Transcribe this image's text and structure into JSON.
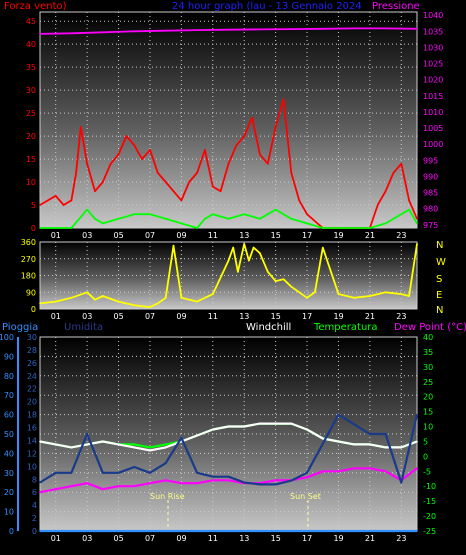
{
  "header": {
    "left_title": "Forza vento)",
    "center_title": "24 hour graph (lau - 13 Gennaio 2024",
    "right_title": "Pressione",
    "colors": {
      "left": "#ff0000",
      "center": "#2020ff",
      "right": "#ff00ff"
    }
  },
  "middle_panel": {
    "compass": [
      "N",
      "W",
      "S",
      "E",
      "N"
    ],
    "compass_color": "#ffff00"
  },
  "bottom_header": {
    "pioggia": "Pioggia",
    "umidita": "Umidita",
    "windchill": "Windchill",
    "temperatura": "Temperatura",
    "dewpoint": "Dew Point (°C)",
    "colors": {
      "pioggia": "#3090ff",
      "umidita": "#2a3a8a",
      "windchill": "#ffffff",
      "temperatura": "#00ff00",
      "dewpoint": "#ff00ff"
    }
  },
  "annotations": {
    "sunrise": "Sun Rise",
    "sunset": "Sun Set"
  },
  "chart_data": [
    {
      "type": "line",
      "panel": "top",
      "x_ticks": [
        "01",
        "03",
        "05",
        "07",
        "09",
        "11",
        "13",
        "15",
        "17",
        "19",
        "21",
        "23"
      ],
      "y_left": {
        "ticks": [
          0,
          5,
          10,
          15,
          20,
          25,
          30,
          35,
          40,
          45
        ],
        "range": [
          0,
          47
        ]
      },
      "y_right": {
        "ticks": [
          975,
          980,
          985,
          990,
          995,
          1000,
          1005,
          1010,
          1015,
          1020,
          1025,
          1030,
          1035,
          1040
        ],
        "range": [
          974,
          1041
        ]
      },
      "series": [
        {
          "name": "Pressione",
          "axis": "right",
          "color": "#ff00ff",
          "x": [
            0,
            2,
            4,
            6,
            8,
            10,
            12,
            14,
            16,
            18,
            20,
            22,
            24
          ],
          "y": [
            1034.2,
            1034.4,
            1034.7,
            1035.0,
            1035.2,
            1035.4,
            1035.5,
            1035.6,
            1035.7,
            1035.8,
            1035.9,
            1035.9,
            1035.8
          ]
        },
        {
          "color": "#ff0000",
          "axis": "left",
          "x": [
            0,
            0.5,
            1,
            1.5,
            2,
            2.3,
            2.6,
            3,
            3.5,
            4,
            4.5,
            5,
            5.5,
            6,
            6.5,
            7,
            7.5,
            8,
            8.5,
            9,
            9.5,
            10,
            10.5,
            11,
            11.5,
            12,
            12.5,
            13,
            13.5,
            14,
            14.5,
            15,
            15.5,
            16,
            16.5,
            17,
            18,
            19,
            20,
            21,
            21.5,
            22,
            22.5,
            23,
            23.5,
            24
          ],
          "y": [
            5,
            6,
            7,
            5,
            6,
            12,
            22,
            14,
            8,
            10,
            14,
            16,
            20,
            18,
            15,
            17,
            12,
            10,
            8,
            6,
            10,
            12,
            17,
            9,
            8,
            14,
            18,
            20,
            24,
            16,
            14,
            22,
            28,
            12,
            6,
            3,
            0,
            0,
            0,
            0,
            5,
            8,
            12,
            14,
            6,
            2
          ]
        },
        {
          "color": "#00ff00",
          "axis": "left",
          "x": [
            0,
            1,
            2,
            2.5,
            3,
            3.5,
            4,
            5,
            6,
            7,
            8,
            9,
            10,
            10.5,
            11,
            12,
            13,
            14,
            15,
            16,
            17,
            18,
            19,
            20,
            21,
            22,
            23,
            23.5,
            24
          ],
          "y": [
            0,
            0,
            0,
            2,
            4,
            2,
            1,
            2,
            3,
            3,
            2,
            1,
            0,
            2,
            3,
            2,
            3,
            2,
            4,
            2,
            1,
            0,
            0,
            0,
            0,
            1,
            3,
            4,
            1
          ]
        }
      ]
    },
    {
      "type": "line",
      "panel": "middle",
      "x_ticks": [
        "01",
        "03",
        "05",
        "07",
        "09",
        "11",
        "13",
        "15",
        "17",
        "19",
        "21",
        "23"
      ],
      "y": {
        "ticks": [
          0,
          90,
          180,
          270,
          360
        ],
        "range": [
          0,
          360
        ]
      },
      "series": [
        {
          "color": "#ffff00",
          "x": [
            0,
            1,
            2,
            3,
            3.5,
            4,
            5,
            6,
            7,
            7.5,
            8,
            8.5,
            9,
            10,
            11,
            12,
            12.3,
            12.6,
            13,
            13.3,
            13.6,
            14,
            14.5,
            15,
            15.5,
            16,
            17,
            17.5,
            18,
            19,
            20,
            21,
            22,
            23,
            23.5,
            24
          ],
          "y": [
            30,
            40,
            60,
            90,
            50,
            70,
            40,
            20,
            10,
            30,
            60,
            340,
            60,
            40,
            80,
            260,
            330,
            200,
            350,
            260,
            330,
            300,
            200,
            150,
            160,
            120,
            60,
            90,
            330,
            80,
            60,
            70,
            90,
            80,
            70,
            350
          ]
        }
      ]
    },
    {
      "type": "line",
      "panel": "bottom",
      "x_ticks": [
        "01",
        "03",
        "05",
        "07",
        "09",
        "11",
        "13",
        "15",
        "17",
        "19",
        "21",
        "23"
      ],
      "y_outer_left": {
        "ticks": [
          0,
          10,
          20,
          30,
          40,
          50,
          60,
          70,
          80,
          90,
          100
        ],
        "range": [
          0,
          100
        ]
      },
      "y_inner_left": {
        "ticks": [
          0,
          2,
          4,
          6,
          8,
          10,
          12,
          14,
          16,
          18,
          20,
          22,
          24,
          26,
          28,
          30
        ],
        "range": [
          0,
          30
        ]
      },
      "y_right": {
        "ticks": [
          40,
          35,
          30,
          25,
          20,
          15,
          10,
          5,
          0,
          -5,
          -10,
          -15,
          -20,
          -25
        ],
        "range": [
          -25,
          40
        ]
      },
      "series": [
        {
          "name": "Temperatura",
          "color": "#00ff00",
          "axis": "right",
          "x": [
            0,
            1,
            2,
            3,
            4,
            5,
            6,
            7,
            8,
            9,
            10,
            11,
            12,
            13,
            14,
            15,
            16,
            17,
            18,
            19,
            20,
            21,
            22,
            23,
            24
          ],
          "y": [
            5,
            4,
            3,
            4,
            5,
            4,
            4,
            3,
            4,
            5,
            7,
            9,
            10,
            10,
            11,
            11,
            11,
            9,
            6,
            5,
            4,
            4,
            3,
            3,
            5
          ]
        },
        {
          "name": "Windchill",
          "color": "#ffffff",
          "axis": "right",
          "x": [
            0,
            1,
            2,
            3,
            4,
            5,
            6,
            7,
            8,
            9,
            10,
            11,
            12,
            13,
            14,
            15,
            16,
            17,
            18,
            19,
            20,
            21,
            22,
            23,
            24
          ],
          "y": [
            5,
            4,
            3,
            4,
            5,
            4,
            3,
            2,
            3,
            5,
            7,
            9,
            10,
            10,
            11,
            11,
            11,
            9,
            6,
            5,
            4,
            4,
            3,
            3,
            5
          ]
        },
        {
          "name": "Dew Point (°C)",
          "color": "#ff00ff",
          "axis": "right",
          "x": [
            0,
            1,
            2,
            3,
            4,
            5,
            6,
            7,
            8,
            9,
            10,
            11,
            12,
            13,
            14,
            15,
            16,
            17,
            18,
            19,
            20,
            21,
            22,
            23,
            24
          ],
          "y": [
            -12,
            -11,
            -10,
            -9,
            -11,
            -10,
            -10,
            -9,
            -8,
            -9,
            -9,
            -8,
            -8,
            -9,
            -9,
            -8,
            -8,
            -7,
            -5,
            -5,
            -4,
            -4,
            -5,
            -8,
            -4
          ]
        },
        {
          "name": "Umidita",
          "color": "#1a3a8a",
          "axis": "outer_left",
          "x": [
            0,
            1,
            2,
            3,
            4,
            5,
            6,
            7,
            8,
            9,
            10,
            11,
            12,
            13,
            14,
            15,
            16,
            17,
            18,
            19,
            20,
            21,
            22,
            23,
            24
          ],
          "y": [
            25,
            30,
            30,
            50,
            30,
            30,
            33,
            30,
            35,
            48,
            30,
            28,
            28,
            25,
            24,
            24,
            26,
            30,
            45,
            60,
            55,
            50,
            50,
            25,
            60
          ]
        },
        {
          "name": "Pioggia",
          "color": "#3090ff",
          "axis": "inner_left",
          "x": [
            0,
            24
          ],
          "y": [
            0,
            0
          ]
        }
      ]
    }
  ]
}
